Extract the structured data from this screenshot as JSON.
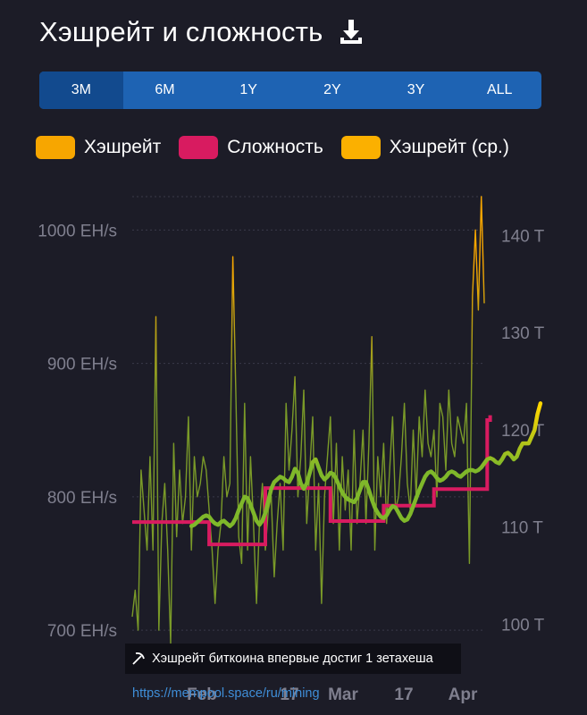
{
  "header": {
    "title": "Хэшрейт и сложность"
  },
  "tabs": [
    {
      "label": "3M",
      "active": true
    },
    {
      "label": "6M",
      "active": false
    },
    {
      "label": "1Y",
      "active": false
    },
    {
      "label": "2Y",
      "active": false
    },
    {
      "label": "3Y",
      "active": false
    },
    {
      "label": "ALL",
      "active": false
    }
  ],
  "legend": [
    {
      "label": "Хэшрейт",
      "color": "#f7a600"
    },
    {
      "label": "Сложность",
      "color": "#d81b60"
    },
    {
      "label": "Хэшрейт (ср.)",
      "color": "#fbb000"
    }
  ],
  "caption": {
    "text": "Хэшрейт биткоина впервые достиг 1 зетахеша",
    "icon": "pickaxe-icon"
  },
  "link": {
    "text": "https://mempool.space/ru/mining"
  },
  "chart_data": {
    "type": "line",
    "x_ticks": [
      "Feb",
      "17",
      "Mar",
      "17",
      "Apr"
    ],
    "y_left": {
      "ticks": [
        "700 EH/s",
        "800 EH/s",
        "900 EH/s",
        "1000 EH/s"
      ],
      "unit": "EH/s",
      "range": [
        690,
        1025
      ]
    },
    "y_right": {
      "ticks": [
        "100 T",
        "110 T",
        "120 T",
        "130 T",
        "140 T"
      ],
      "unit": "T",
      "range": [
        98,
        144
      ]
    },
    "grid": true,
    "colors": {
      "hashrate_low": "#7a9a28",
      "hashrate_high": "#f7a600",
      "difficulty": "#d81b60",
      "avg_low": "#7fb82a",
      "avg_high": "#ffd600"
    },
    "series": [
      {
        "name": "Хэшрейт",
        "axis": "left",
        "values": [
          710,
          730,
          700,
          820,
          790,
          760,
          830,
          760,
          935,
          700,
          780,
          810,
          760,
          690,
          840,
          770,
          820,
          780,
          800,
          860,
          760,
          830,
          800,
          810,
          830,
          820,
          790,
          760,
          720,
          760,
          780,
          830,
          800,
          810,
          980,
          880,
          770,
          750,
          870,
          760,
          830,
          780,
          720,
          780,
          810,
          760,
          790,
          800,
          740,
          780,
          810,
          760,
          870,
          820,
          850,
          890,
          800,
          830,
          880,
          780,
          820,
          860,
          760,
          810,
          720,
          800,
          830,
          860,
          780,
          840,
          760,
          830,
          790,
          820,
          760,
          850,
          780,
          810,
          850,
          780,
          840,
          920,
          760,
          830,
          800,
          840,
          780,
          820,
          860,
          790,
          800,
          830,
          870,
          810,
          790,
          850,
          800,
          860,
          830,
          880,
          840,
          830,
          850,
          800,
          870,
          860,
          820,
          880,
          840,
          830,
          860,
          850,
          840,
          870,
          750,
          950,
          1000,
          940,
          1025,
          945
        ]
      },
      {
        "name": "Сложность",
        "axis": "right",
        "values": [
          110.5,
          110.5,
          110.5,
          110.5,
          110.5,
          110.5,
          110.5,
          110.5,
          110.5,
          110.5,
          110.5,
          110.5,
          110.5,
          110.5,
          110.5,
          110.5,
          110.5,
          110.5,
          110.5,
          110.5,
          110.5,
          110.5,
          110.5,
          110.5,
          110.5,
          110.5,
          108.2,
          108.2,
          108.2,
          108.2,
          108.2,
          108.2,
          108.2,
          108.2,
          108.2,
          108.2,
          108.2,
          108.2,
          108.2,
          108.2,
          108.2,
          108.2,
          108.2,
          108.2,
          108.2,
          114.0,
          114.0,
          114.0,
          114.0,
          114.0,
          114.0,
          114.0,
          114.0,
          114.0,
          114.0,
          114.0,
          114.0,
          114.0,
          114.0,
          114.0,
          114.0,
          114.0,
          114.0,
          114.0,
          114.0,
          114.0,
          114.0,
          110.6,
          110.6,
          110.6,
          110.6,
          110.6,
          110.6,
          110.6,
          110.6,
          110.6,
          110.6,
          110.6,
          110.6,
          110.6,
          110.6,
          110.6,
          110.6,
          110.6,
          110.6,
          112.2,
          112.2,
          112.2,
          112.2,
          112.2,
          112.2,
          112.2,
          112.2,
          112.2,
          112.2,
          112.2,
          112.2,
          112.2,
          112.2,
          112.2,
          112.2,
          112.2,
          113.9,
          113.9,
          113.9,
          113.9,
          113.9,
          113.9,
          113.9,
          113.9,
          113.9,
          113.9,
          113.9,
          113.9,
          113.9,
          113.9,
          113.9,
          113.9,
          113.9,
          113.9,
          121.0,
          121.5
        ]
      },
      {
        "name": "Хэшрейт (ср.)",
        "axis": "left",
        "x_start": 20,
        "values": [
          778,
          779,
          781,
          783,
          785,
          786,
          785,
          782,
          780,
          779,
          781,
          782,
          780,
          778,
          780,
          784,
          790,
          795,
          800,
          799,
          794,
          788,
          782,
          779,
          782,
          788,
          797,
          806,
          811,
          813,
          815,
          814,
          812,
          811,
          815,
          821,
          818,
          810,
          806,
          810,
          818,
          826,
          828,
          822,
          816,
          813,
          815,
          818,
          817,
          813,
          808,
          803,
          800,
          798,
          797,
          796,
          799,
          805,
          811,
          811,
          805,
          798,
          792,
          788,
          785,
          784,
          786,
          790,
          793,
          792,
          788,
          784,
          782,
          783,
          787,
          793,
          799,
          805,
          810,
          815,
          818,
          819,
          817,
          814,
          812,
          813,
          815,
          818,
          819,
          818,
          816,
          815,
          817,
          819,
          820,
          820,
          819,
          820,
          822,
          825,
          828,
          829,
          828,
          826,
          825,
          828,
          832,
          833,
          831,
          828,
          830,
          836,
          840,
          840,
          840,
          845,
          850,
          862,
          870
        ]
      }
    ]
  }
}
